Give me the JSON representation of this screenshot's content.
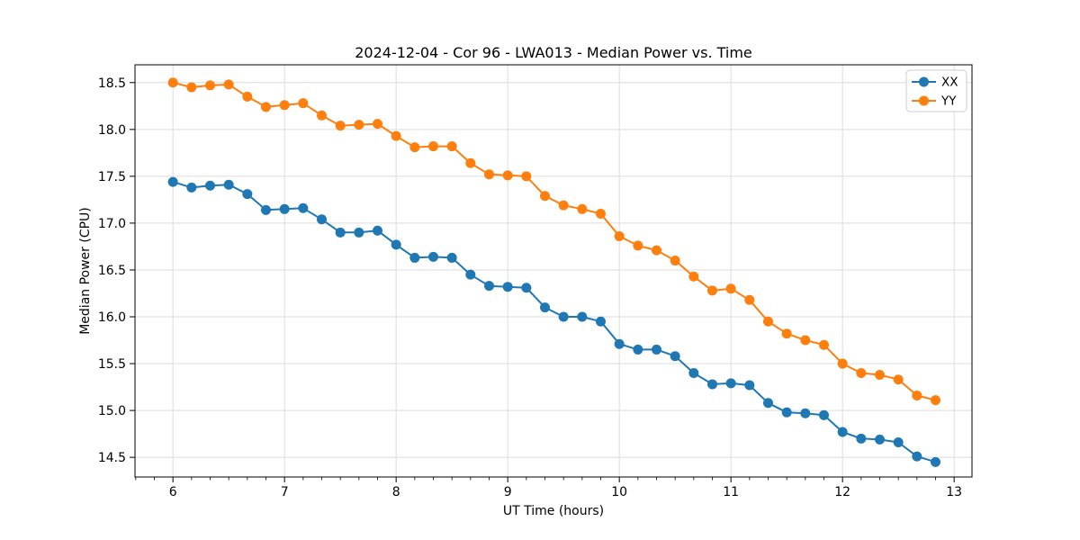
{
  "chart_data": {
    "type": "line",
    "title": "2024-12-04 - Cor 96 - LWA013 - Median Power vs. Time",
    "xlabel": "UT Time (hours)",
    "ylabel": "Median Power (CPU)",
    "xlim": [
      5.66,
      13.16
    ],
    "ylim": [
      14.29,
      18.69
    ],
    "grid": true,
    "legend_position": "upper right",
    "x_major_ticks": [
      6,
      7,
      8,
      9,
      10,
      11,
      12,
      13
    ],
    "x_tick_labels": [
      "6",
      "7",
      "8",
      "9",
      "10",
      "11",
      "12",
      "13"
    ],
    "x_minor_interval": 0.166667,
    "y_major_ticks": [
      14.5,
      15.0,
      15.5,
      16.0,
      16.5,
      17.0,
      17.5,
      18.0,
      18.5
    ],
    "y_tick_labels": [
      "14.5",
      "15.0",
      "15.5",
      "16.0",
      "16.5",
      "17.0",
      "17.5",
      "18.0",
      "18.5"
    ],
    "x": [
      6.0,
      6.1667,
      6.3333,
      6.5,
      6.6667,
      6.8333,
      7.0,
      7.1667,
      7.3333,
      7.5,
      7.6667,
      7.8333,
      8.0,
      8.1667,
      8.3333,
      8.5,
      8.6667,
      8.8333,
      9.0,
      9.1667,
      9.3333,
      9.5,
      9.6667,
      9.8333,
      10.0,
      10.1667,
      10.3333,
      10.5,
      10.6667,
      10.8333,
      11.0,
      11.1667,
      11.3333,
      11.5,
      11.6667,
      11.8333,
      12.0,
      12.1667,
      12.3333,
      12.5,
      12.6667,
      12.8333
    ],
    "series": [
      {
        "name": "XX",
        "color": "#1f77b4",
        "values": [
          17.44,
          17.38,
          17.4,
          17.41,
          17.31,
          17.14,
          17.15,
          17.16,
          17.04,
          16.9,
          16.9,
          16.92,
          16.77,
          16.63,
          16.64,
          16.63,
          16.45,
          16.33,
          16.32,
          16.31,
          16.1,
          16.0,
          16.0,
          15.95,
          15.71,
          15.65,
          15.65,
          15.58,
          15.4,
          15.28,
          15.29,
          15.27,
          15.08,
          14.98,
          14.97,
          14.95,
          14.77,
          14.7,
          14.69,
          14.66,
          14.51,
          14.45
        ]
      },
      {
        "name": "YY",
        "color": "#ff7f0e",
        "values": [
          18.5,
          18.45,
          18.47,
          18.48,
          18.35,
          18.24,
          18.26,
          18.28,
          18.15,
          18.04,
          18.05,
          18.06,
          17.93,
          17.81,
          17.82,
          17.82,
          17.64,
          17.52,
          17.51,
          17.5,
          17.29,
          17.19,
          17.15,
          17.1,
          16.86,
          16.76,
          16.71,
          16.6,
          16.43,
          16.28,
          16.3,
          16.18,
          15.95,
          15.82,
          15.75,
          15.7,
          15.5,
          15.4,
          15.38,
          15.33,
          15.16,
          15.11
        ]
      }
    ],
    "style": {
      "spine_color": "#000000",
      "grid_color": "#dcdcdc",
      "tick_color": "#000000",
      "background": "#ffffff",
      "legend_border": "#cccccc"
    }
  }
}
